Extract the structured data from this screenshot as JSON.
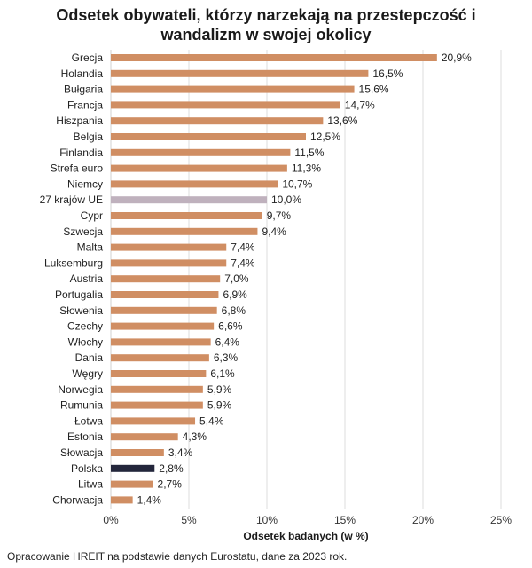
{
  "chart_data": {
    "type": "bar",
    "orientation": "horizontal",
    "title_lines": [
      "Odsetek obywateli, którzy narzekają na przestepczość i",
      "wandalizm w swojej okolicy"
    ],
    "title": "Odsetek obywateli, którzy narzekają na przestepczość i wandalizm w swojej okolicy",
    "xlabel": "Odsetek badanych (w %)",
    "ylabel": "",
    "xlim": [
      0,
      25
    ],
    "x_ticks": [
      0,
      5,
      10,
      15,
      20,
      25
    ],
    "x_tick_labels": [
      "0%",
      "5%",
      "10%",
      "15%",
      "20%",
      "25%"
    ],
    "grid": true,
    "categories": [
      "Grecja",
      "Holandia",
      "Bułgaria",
      "Francja",
      "Hiszpania",
      "Belgia",
      "Finlandia",
      "Strefa euro",
      "Niemcy",
      "27 krajów UE",
      "Cypr",
      "Szwecja",
      "Malta",
      "Luksemburg",
      "Austria",
      "Portugalia",
      "Słowenia",
      "Czechy",
      "Włochy",
      "Dania",
      "Węgry",
      "Norwegia",
      "Rumunia",
      "Łotwa",
      "Estonia",
      "Słowacja",
      "Polska",
      "Litwa",
      "Chorwacja"
    ],
    "values": [
      20.9,
      16.5,
      15.6,
      14.7,
      13.6,
      12.5,
      11.5,
      11.3,
      10.7,
      10.0,
      9.7,
      9.4,
      7.4,
      7.4,
      7.0,
      6.9,
      6.8,
      6.6,
      6.4,
      6.3,
      6.1,
      5.9,
      5.9,
      5.4,
      4.3,
      3.4,
      2.8,
      2.7,
      1.4
    ],
    "value_labels": [
      "20,9%",
      "16,5%",
      "15,6%",
      "14,7%",
      "13,6%",
      "12,5%",
      "11,5%",
      "11,3%",
      "10,7%",
      "10,0%",
      "9,7%",
      "9,4%",
      "7,4%",
      "7,4%",
      "7,0%",
      "6,9%",
      "6,8%",
      "6,6%",
      "6,4%",
      "6,3%",
      "6,1%",
      "5,9%",
      "5,9%",
      "5,4%",
      "4,3%",
      "3,4%",
      "2,8%",
      "2,7%",
      "1,4%"
    ],
    "colors": {
      "default": "#D08E63",
      "highlight": {
        "27 krajów UE": "#BFB1BD",
        "Polska": "#23263B"
      }
    }
  },
  "source": "Opracowanie HREIT na podstawie danych Eurostatu, dane za 2023 rok."
}
